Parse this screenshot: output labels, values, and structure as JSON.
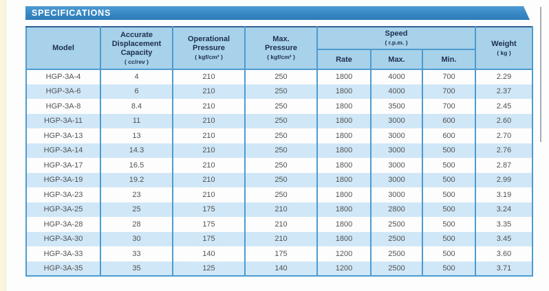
{
  "page": {
    "section_title": "SPECIFICATIONS"
  },
  "colors": {
    "banner_blue": "#3787c3",
    "header_bg": "#a7d2ea",
    "row_alt_bg": "#cfe7f6",
    "table_border": "#4c9bd0",
    "header_text": "#1e2f4d",
    "body_text": "#525252"
  },
  "table": {
    "header": {
      "model": {
        "title": "Model",
        "unit": ""
      },
      "displacement": {
        "title": "Accurate\nDisplacement\nCapacity",
        "unit": "( cc/rev )"
      },
      "op_pressure": {
        "title": "Operational\nPressure",
        "unit": "( kgf/cm² )"
      },
      "max_pressure": {
        "title": "Max.\nPressure",
        "unit": "( kgf/cm² )"
      },
      "speed": {
        "title": "Speed",
        "unit": "( r.p.m. )"
      },
      "speed_sub": {
        "rate": "Rate",
        "max": "Max.",
        "min": "Min."
      },
      "weight": {
        "title": "Weight",
        "unit": "( kg )"
      }
    },
    "rows": [
      [
        "HGP-3A-4",
        "4",
        "210",
        "250",
        "1800",
        "4000",
        "700",
        "2.29"
      ],
      [
        "HGP-3A-6",
        "6",
        "210",
        "250",
        "1800",
        "4000",
        "700",
        "2.37"
      ],
      [
        "HGP-3A-8",
        "8.4",
        "210",
        "250",
        "1800",
        "3500",
        "700",
        "2.45"
      ],
      [
        "HGP-3A-11",
        "11",
        "210",
        "250",
        "1800",
        "3000",
        "600",
        "2.60"
      ],
      [
        "HGP-3A-13",
        "13",
        "210",
        "250",
        "1800",
        "3000",
        "600",
        "2.70"
      ],
      [
        "HGP-3A-14",
        "14.3",
        "210",
        "250",
        "1800",
        "3000",
        "500",
        "2.76"
      ],
      [
        "HGP-3A-17",
        "16.5",
        "210",
        "250",
        "1800",
        "3000",
        "500",
        "2.87"
      ],
      [
        "HGP-3A-19",
        "19.2",
        "210",
        "250",
        "1800",
        "3000",
        "500",
        "2.99"
      ],
      [
        "HGP-3A-23",
        "23",
        "210",
        "250",
        "1800",
        "3000",
        "500",
        "3.19"
      ],
      [
        "HGP-3A-25",
        "25",
        "175",
        "210",
        "1800",
        "2800",
        "500",
        "3.24"
      ],
      [
        "HGP-3A-28",
        "28",
        "175",
        "210",
        "1800",
        "2500",
        "500",
        "3.35"
      ],
      [
        "HGP-3A-30",
        "30",
        "175",
        "210",
        "1800",
        "2500",
        "500",
        "3.45"
      ],
      [
        "HGP-3A-33",
        "33",
        "140",
        "175",
        "1200",
        "2500",
        "500",
        "3.60"
      ],
      [
        "HGP-3A-35",
        "35",
        "125",
        "140",
        "1200",
        "2500",
        "500",
        "3.71"
      ]
    ]
  }
}
